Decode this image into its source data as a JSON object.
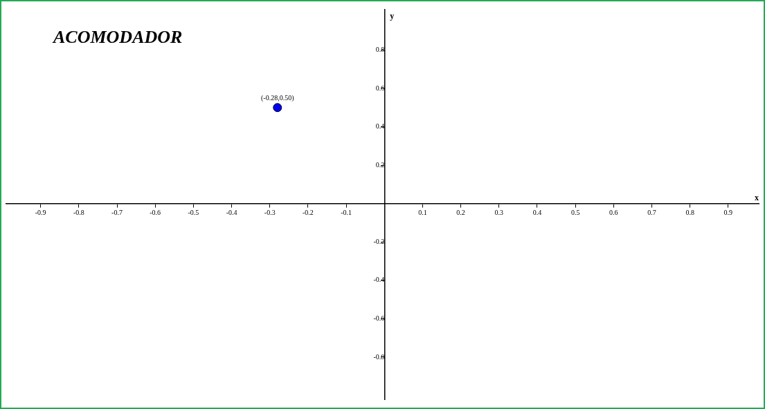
{
  "chart_data": {
    "type": "scatter",
    "title": "ACOMODADOR",
    "xlabel": "x",
    "ylabel": "y",
    "series": [
      {
        "color": "#0000ee",
        "x": [
          -0.28
        ],
        "values": [
          0.5
        ],
        "value_labels": [
          "(-0.28,0.50)"
        ]
      }
    ],
    "xlim": [
      -0.99,
      0.98
    ],
    "ylim": [
      -1.02,
      1.01
    ],
    "xticks": [
      -0.9,
      -0.8,
      -0.7,
      -0.6,
      -0.5,
      -0.4,
      -0.3,
      -0.2,
      -0.1,
      0.1,
      0.2,
      0.3,
      0.4,
      0.5,
      0.6,
      0.7,
      0.8,
      0.9
    ],
    "yticks": [
      -0.8,
      -0.6,
      -0.4,
      -0.2,
      0.2,
      0.4,
      0.6,
      0.8
    ],
    "grid": false,
    "legend": false,
    "marker": "circle"
  }
}
